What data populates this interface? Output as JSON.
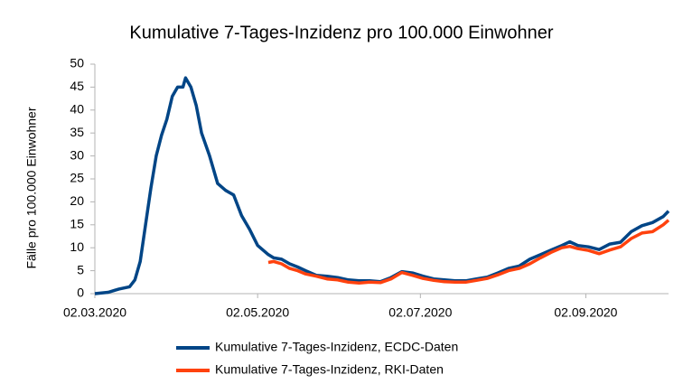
{
  "chart_data": {
    "type": "line",
    "title": "Kumulative 7-Tages-Inzidenz pro 100.000 Einwohner",
    "y_label": "Fälle pro 100.000 Einwohner",
    "x": [
      "02.03.2020",
      "07.03.2020",
      "11.03.2020",
      "15.03.2020",
      "17.03.2020",
      "19.03.2020",
      "21.03.2020",
      "23.03.2020",
      "25.03.2020",
      "27.03.2020",
      "29.03.2020",
      "31.03.2020",
      "02.04.2020",
      "04.04.2020",
      "05.04.2020",
      "07.04.2020",
      "09.04.2020",
      "11.04.2020",
      "14.04.2020",
      "17.04.2020",
      "20.04.2020",
      "23.04.2020",
      "26.04.2020",
      "29.04.2020",
      "02.05.2020",
      "06.05.2020",
      "08.05.2020",
      "11.05.2020",
      "14.05.2020",
      "17.05.2020",
      "20.05.2020",
      "24.05.2020",
      "28.05.2020",
      "01.06.2020",
      "05.06.2020",
      "09.06.2020",
      "13.06.2020",
      "17.06.2020",
      "21.06.2020",
      "25.06.2020",
      "29.06.2020",
      "03.07.2020",
      "07.07.2020",
      "11.07.2020",
      "15.07.2020",
      "19.07.2020",
      "23.07.2020",
      "27.07.2020",
      "31.07.2020",
      "04.08.2020",
      "08.08.2020",
      "12.08.2020",
      "16.08.2020",
      "20.08.2020",
      "24.08.2020",
      "27.08.2020",
      "30.08.2020",
      "03.09.2020",
      "07.09.2020",
      "11.09.2020",
      "15.09.2020",
      "19.09.2020",
      "23.09.2020",
      "27.09.2020",
      "01.10.2020",
      "03.10.2020"
    ],
    "series": [
      {
        "name": "Kumulative 7-Tages-Inzidenz, ECDC-Daten",
        "color": "#004586",
        "values": [
          0,
          0.3,
          1,
          1.5,
          3,
          7,
          15,
          23,
          30,
          34.5,
          38,
          43,
          45,
          45,
          47,
          45,
          41,
          35,
          30,
          24,
          22.5,
          21.5,
          17,
          14,
          10.5,
          8.5,
          7.8,
          7.5,
          6.5,
          5.8,
          5,
          4,
          3.8,
          3.5,
          3,
          2.8,
          2.8,
          2.6,
          3.5,
          4.8,
          4.5,
          3.8,
          3.2,
          3,
          2.8,
          2.8,
          3.2,
          3.6,
          4.5,
          5.5,
          6,
          7.5,
          8.5,
          9.5,
          10.5,
          11.3,
          10.5,
          10.2,
          9.6,
          10.8,
          11.2,
          13.5,
          14.8,
          15.5,
          16.8,
          18
        ]
      },
      {
        "name": "Kumulative 7-Tages-Inzidenz, RKI-Daten",
        "color": "#ff420e",
        "values": [
          null,
          null,
          null,
          null,
          null,
          null,
          null,
          null,
          null,
          null,
          null,
          null,
          null,
          null,
          null,
          null,
          null,
          null,
          null,
          null,
          null,
          null,
          null,
          null,
          null,
          6.8,
          7,
          6.5,
          5.5,
          5,
          4.3,
          3.8,
          3.2,
          3,
          2.5,
          2.3,
          2.5,
          2.4,
          3.2,
          4.6,
          4,
          3.3,
          2.9,
          2.6,
          2.5,
          2.5,
          2.9,
          3.3,
          4.1,
          5,
          5.5,
          6.5,
          7.8,
          9,
          10,
          10.3,
          9.8,
          9.4,
          8.7,
          9.5,
          10.2,
          12,
          13.2,
          13.5,
          15,
          16
        ]
      }
    ],
    "xlim": [
      "02.03.2020",
      "03.10.2020"
    ],
    "xticks": [
      "02.03.2020",
      "02.05.2020",
      "02.07.2020",
      "02.09.2020"
    ],
    "ylim": [
      0,
      50
    ],
    "yticks": [
      0,
      5,
      10,
      15,
      20,
      25,
      30,
      35,
      40,
      45,
      50
    ],
    "legend": "bottom",
    "grid": false
  }
}
